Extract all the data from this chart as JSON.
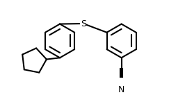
{
  "background_color": "#ffffff",
  "line_color": "#000000",
  "line_width": 1.5,
  "font_size_atoms": 9,
  "S_label": "S",
  "N_label": "N",
  "figsize": [
    2.43,
    1.37
  ],
  "dpi": 100
}
